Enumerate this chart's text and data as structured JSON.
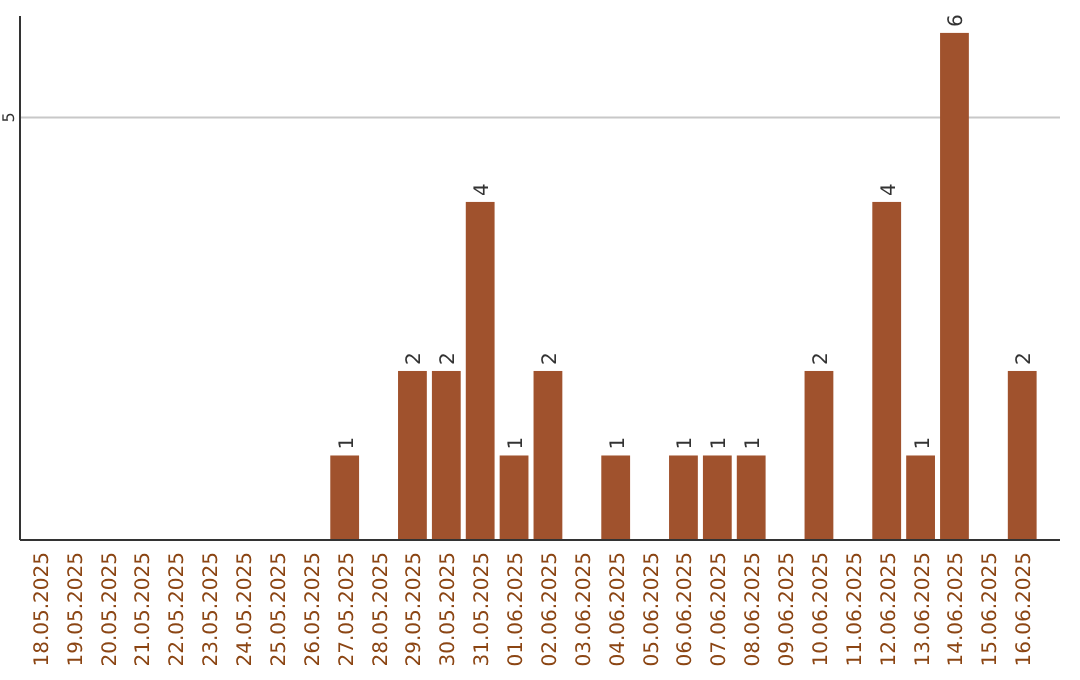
{
  "chart_data": {
    "type": "bar",
    "categories": [
      "18.05.2025",
      "19.05.2025",
      "20.05.2025",
      "21.05.2025",
      "22.05.2025",
      "23.05.2025",
      "24.05.2025",
      "25.05.2025",
      "26.05.2025",
      "27.05.2025",
      "28.05.2025",
      "29.05.2025",
      "30.05.2025",
      "31.05.2025",
      "01.06.2025",
      "02.06.2025",
      "03.06.2025",
      "04.06.2025",
      "05.06.2025",
      "06.06.2025",
      "07.06.2025",
      "08.06.2025",
      "09.06.2025",
      "10.06.2025",
      "11.06.2025",
      "12.06.2025",
      "13.06.2025",
      "14.06.2025",
      "15.06.2025",
      "16.06.2025"
    ],
    "values": [
      0,
      0,
      0,
      0,
      0,
      0,
      0,
      0,
      0,
      1,
      0,
      2,
      2,
      4,
      1,
      2,
      0,
      1,
      0,
      1,
      1,
      1,
      0,
      2,
      0,
      4,
      1,
      6,
      0,
      2
    ],
    "value_labels": [
      null,
      null,
      null,
      null,
      null,
      null,
      null,
      null,
      null,
      "1",
      null,
      "2",
      "2",
      "4",
      "1",
      "2",
      null,
      "1",
      null,
      "1",
      "1",
      "1",
      null,
      "2",
      null,
      "4",
      "1",
      "6",
      null,
      "2"
    ],
    "color": "#a0522d",
    "ylim": [
      0,
      6.2
    ],
    "yticks": [
      5
    ],
    "grid": "y"
  }
}
